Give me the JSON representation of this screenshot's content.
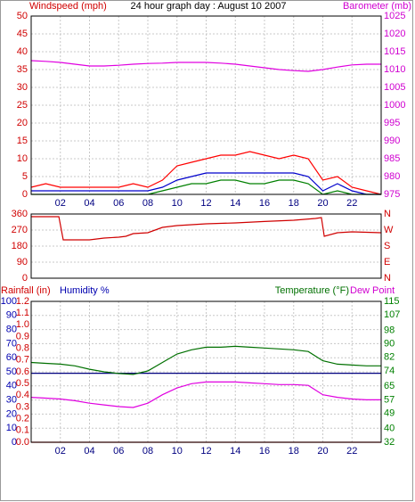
{
  "chart_data": [
    {
      "type": "line",
      "title": "24 hour graph day : August 10 2007",
      "ylabel": "Windspeed (mph)",
      "y2label": "Barometer (mb)",
      "x": [
        0,
        1,
        2,
        3,
        4,
        5,
        6,
        7,
        8,
        9,
        10,
        11,
        12,
        13,
        14,
        15,
        16,
        17,
        18,
        19,
        20,
        21,
        22,
        23,
        24
      ],
      "xlim": [
        0,
        24
      ],
      "xticks": [
        {
          "value": 2,
          "label": "02"
        },
        {
          "value": 4,
          "label": "04"
        },
        {
          "value": 6,
          "label": "06"
        },
        {
          "value": 8,
          "label": "08"
        },
        {
          "value": 10,
          "label": "10"
        },
        {
          "value": 12,
          "label": "12"
        },
        {
          "value": 14,
          "label": "14"
        },
        {
          "value": 16,
          "label": "16"
        },
        {
          "value": 18,
          "label": "18"
        },
        {
          "value": 20,
          "label": "20"
        },
        {
          "value": 22,
          "label": "22"
        }
      ],
      "ylim": [
        0,
        50
      ],
      "yticks": [
        0,
        5,
        10,
        15,
        20,
        25,
        30,
        35,
        40,
        45,
        50
      ],
      "y_color": "#d00000",
      "y2lim": [
        975,
        1025
      ],
      "y2ticks": [
        975,
        980,
        985,
        990,
        995,
        1000,
        1005,
        1010,
        1015,
        1020,
        1025
      ],
      "y2_color": "#d000d0",
      "grid": true,
      "series": [
        {
          "color": "#ff0000",
          "values": [
            2,
            3,
            2,
            2,
            2,
            2,
            2,
            3,
            2,
            4,
            8,
            9,
            10,
            11,
            11,
            12,
            11,
            10,
            11,
            10,
            4,
            5,
            2,
            1,
            0
          ]
        },
        {
          "color": "#0000cc",
          "values": [
            1,
            1,
            1,
            1,
            1,
            1,
            1,
            1,
            1,
            2,
            4,
            5,
            6,
            6,
            6,
            6,
            6,
            6,
            6,
            5,
            1,
            3,
            1,
            0,
            0
          ]
        },
        {
          "color": "#008000",
          "values": [
            0,
            0,
            0,
            0,
            0,
            0,
            0,
            0,
            0,
            1,
            2,
            3,
            3,
            4,
            4,
            3,
            3,
            4,
            4,
            3,
            0,
            1,
            0,
            0,
            0
          ]
        },
        {
          "color": "#e000e0",
          "axis": "y2",
          "values": [
            1012.5,
            1012.3,
            1012,
            1011.5,
            1011,
            1011,
            1011.2,
            1011.5,
            1011.7,
            1011.8,
            1012,
            1012,
            1012,
            1011.8,
            1011.5,
            1011,
            1010.5,
            1010,
            1009.7,
            1009.5,
            1010,
            1010.7,
            1011.3,
            1011.5,
            1011.5
          ]
        }
      ]
    },
    {
      "type": "line",
      "x": [
        0,
        1.9,
        2.2,
        4,
        5,
        6,
        6.5,
        7,
        8,
        9,
        10,
        12,
        14,
        16,
        18,
        19.5,
        19.9,
        20.1,
        21,
        22,
        24
      ],
      "xlim": [
        0,
        24
      ],
      "ylim": [
        0,
        360
      ],
      "yticks": [
        0,
        90,
        180,
        270,
        360
      ],
      "y_color": "#d00000",
      "y2lim": [
        0,
        360
      ],
      "y2ticks": [
        {
          "value": 0,
          "label": "N"
        },
        {
          "value": 90,
          "label": "E"
        },
        {
          "value": 180,
          "label": "S"
        },
        {
          "value": 270,
          "label": "W"
        },
        {
          "value": 360,
          "label": "N"
        }
      ],
      "y2_color": "#d00000",
      "grid": true,
      "series": [
        {
          "color": "#d00000",
          "values": [
            345,
            345,
            215,
            215,
            225,
            230,
            235,
            250,
            255,
            285,
            295,
            305,
            310,
            318,
            325,
            335,
            340,
            235,
            255,
            260,
            255
          ]
        }
      ]
    },
    {
      "type": "line",
      "ylabel": "Humidity %",
      "y3label": "Rainfall (in)",
      "y2labels": [
        "Temperature (°F)",
        "Dew Point"
      ],
      "x": [
        0,
        1,
        2,
        3,
        4,
        5,
        6,
        7,
        8,
        9,
        10,
        11,
        12,
        13,
        14,
        15,
        16,
        17,
        18,
        19,
        20,
        21,
        22,
        23,
        24
      ],
      "xlim": [
        0,
        24
      ],
      "xticks": [
        {
          "value": 2,
          "label": "02"
        },
        {
          "value": 4,
          "label": "04"
        },
        {
          "value": 6,
          "label": "06"
        },
        {
          "value": 8,
          "label": "08"
        },
        {
          "value": 10,
          "label": "10"
        },
        {
          "value": 12,
          "label": "12"
        },
        {
          "value": 14,
          "label": "14"
        },
        {
          "value": 16,
          "label": "16"
        },
        {
          "value": 18,
          "label": "18"
        },
        {
          "value": 20,
          "label": "20"
        },
        {
          "value": 22,
          "label": "22"
        }
      ],
      "ylim": [
        0,
        100
      ],
      "yticks": [
        0,
        10,
        20,
        30,
        40,
        50,
        60,
        70,
        80,
        90,
        100
      ],
      "y_color": "#0000b0",
      "y3lim": [
        0,
        1.2
      ],
      "y3ticks": [
        {
          "value": 0,
          "label": "0.0"
        },
        0.1,
        0.2,
        0.3,
        0.4,
        0.5,
        0.6,
        0.7,
        0.8,
        0.9,
        {
          "value": 1,
          "label": "1.0"
        },
        1.1,
        1.2
      ],
      "y3_color": "#d00000",
      "y2lim": [
        32,
        115
      ],
      "y2ticks": [
        32,
        40,
        49,
        57,
        65,
        74,
        82,
        90,
        98,
        107,
        115
      ],
      "y2_color": "#008000",
      "grid": true,
      "series": [
        {
          "color": "#000080",
          "values": [
            49,
            49,
            49,
            49,
            49,
            49,
            49,
            49,
            49,
            49,
            49,
            49,
            49,
            49,
            49,
            49,
            49,
            49,
            49,
            49,
            49,
            49,
            49,
            49,
            49
          ]
        },
        {
          "color": "#d00000",
          "axis": "y3",
          "values": [
            0,
            0,
            0,
            0,
            0,
            0,
            0,
            0,
            0,
            0,
            0,
            0,
            0,
            0,
            0,
            0,
            0,
            0,
            0,
            0,
            0,
            0,
            0,
            0,
            0
          ]
        },
        {
          "color": "#007000",
          "axis": "y2",
          "values": [
            79,
            78.5,
            78,
            77,
            75,
            73.5,
            72.5,
            72,
            74,
            79,
            84,
            86.5,
            88,
            88,
            88.5,
            88,
            87.5,
            87,
            86.5,
            85.5,
            80,
            78,
            77.5,
            77,
            77
          ]
        },
        {
          "color": "#e000e0",
          "axis": "y2",
          "values": [
            58.5,
            58,
            57.5,
            56.5,
            55,
            54,
            53,
            52.5,
            55,
            60,
            64,
            66.5,
            67.5,
            67.5,
            67.5,
            67,
            66.5,
            66,
            66,
            65.5,
            60,
            58.5,
            57.5,
            57,
            57
          ]
        }
      ]
    }
  ]
}
